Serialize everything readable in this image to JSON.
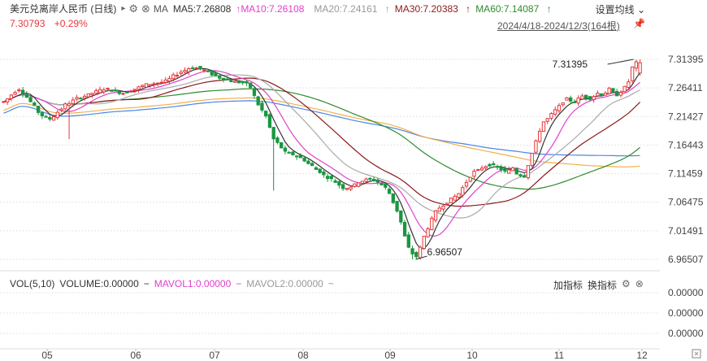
{
  "header": {
    "title": "美元兑离岸人民币 (日线)",
    "indicator_name": "MA",
    "ma5": "MA5:7.26808",
    "ma10": "MA10:7.26108",
    "ma20": "MA20:7.24161",
    "ma30": "MA30:7.20383",
    "ma60": "MA60:7.14087",
    "settings": "设置均线",
    "price": "7.30793",
    "change": "+0.29%",
    "range": "2024/4/18-2024/12/3(164根)"
  },
  "volume_panel": {
    "vol_label": "VOL(5,10)",
    "volume": "VOLUME:0.00000",
    "mavol1": "MAVOL1:0.00000",
    "mavol2": "MAVOL2:0.00000",
    "add_indicator": "加指标",
    "switch_indicator": "换指标",
    "y_ticks": [
      "0.00000",
      "0.00000",
      "0.00000"
    ]
  },
  "colors": {
    "up": "#e6363a",
    "down": "#1a9641",
    "ma5": "#333333",
    "ma10": "#e040c8",
    "ma20": "#aaaaaa",
    "ma30": "#8b1a1a",
    "ma60": "#2e8b2e",
    "ma_long1": "#f0b04a",
    "ma_long2": "#4a86e8"
  },
  "chart_data": {
    "type": "candlestick",
    "y_ticks": [
      "7.31395",
      "7.26411",
      "7.21427",
      "7.16443",
      "7.11459",
      "7.06475",
      "7.01491",
      "6.96507"
    ],
    "ylim": [
      6.96507,
      7.31395
    ],
    "x_ticks": [
      "05",
      "06",
      "07",
      "08",
      "09",
      "10",
      "11",
      "12"
    ],
    "annotations": {
      "high": "7.31395",
      "low": "6.96507"
    },
    "close_series": [
      7.24,
      7.245,
      7.252,
      7.258,
      7.262,
      7.255,
      7.248,
      7.24,
      7.232,
      7.222,
      7.216,
      7.212,
      7.21,
      7.215,
      7.222,
      7.228,
      7.235,
      7.238,
      7.242,
      7.246,
      7.248,
      7.25,
      7.252,
      7.255,
      7.258,
      7.26,
      7.262,
      7.262,
      7.26,
      7.258,
      7.256,
      7.255,
      7.257,
      7.26,
      7.262,
      7.265,
      7.268,
      7.27,
      7.271,
      7.272,
      7.273,
      7.274,
      7.276,
      7.28,
      7.285,
      7.288,
      7.292,
      7.295,
      7.298,
      7.3,
      7.299,
      7.297,
      7.295,
      7.292,
      7.288,
      7.285,
      7.282,
      7.28,
      7.278,
      7.276,
      7.275,
      7.274,
      7.273,
      7.271,
      7.265,
      7.25,
      7.235,
      7.225,
      7.215,
      7.195,
      7.175,
      7.168,
      7.16,
      7.152,
      7.15,
      7.148,
      7.145,
      7.142,
      7.138,
      7.132,
      7.128,
      7.122,
      7.118,
      7.112,
      7.108,
      7.105,
      7.1,
      7.095,
      7.09,
      7.09,
      7.092,
      7.095,
      7.1,
      7.102,
      7.104,
      7.105,
      7.103,
      7.1,
      7.095,
      7.09,
      7.08,
      7.065,
      7.05,
      7.03,
      7.005,
      6.985,
      6.975,
      6.97,
      6.985,
      7.005,
      7.02,
      7.035,
      7.048,
      7.055,
      7.06,
      7.065,
      7.07,
      7.075,
      7.08,
      7.09,
      7.1,
      7.11,
      7.118,
      7.12,
      7.125,
      7.128,
      7.13,
      7.128,
      7.125,
      7.122,
      7.118,
      7.12,
      7.125,
      7.115,
      7.112,
      7.11,
      7.13,
      7.15,
      7.17,
      7.19,
      7.205,
      7.21,
      7.218,
      7.225,
      7.232,
      7.24,
      7.245,
      7.242,
      7.24,
      7.245,
      7.25,
      7.248,
      7.246,
      7.25,
      7.255,
      7.252,
      7.256,
      7.262,
      7.255,
      7.252,
      7.258,
      7.265,
      7.275,
      7.3,
      7.308,
      7.308
    ]
  }
}
